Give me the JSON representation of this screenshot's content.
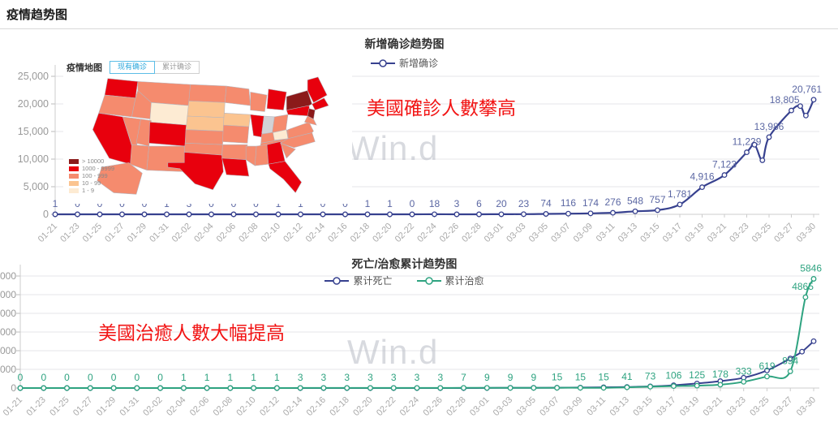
{
  "page": {
    "title": "疫情趋势图"
  },
  "watermark": "Win.d",
  "annotations": {
    "color": "#f21414",
    "chart1": "美國確診人數攀高",
    "chart2": "美國治癒人數大幅提高"
  },
  "map": {
    "title": "疫情地图",
    "tabs": [
      {
        "label": "现有确诊",
        "active": true
      },
      {
        "label": "累计确诊",
        "active": false
      }
    ],
    "legend": [
      {
        "label": "> 10000",
        "color": "#8b1a1a"
      },
      {
        "label": "1000 - 9999",
        "color": "#e8000d"
      },
      {
        "label": "100 - 999",
        "color": "#f58b6e"
      },
      {
        "label": "10 - 99",
        "color": "#fbc490"
      },
      {
        "label": "1 - 9",
        "color": "#fdebd3"
      }
    ],
    "no_data_color": "#d2d2d6",
    "states": [
      {
        "id": "WA",
        "level": 1
      },
      {
        "id": "OR",
        "level": 2
      },
      {
        "id": "CA",
        "level": 1
      },
      {
        "id": "NV",
        "level": 2
      },
      {
        "id": "ID",
        "level": 2
      },
      {
        "id": "MT",
        "level": 2
      },
      {
        "id": "WY",
        "level": 4
      },
      {
        "id": "UT",
        "level": 2
      },
      {
        "id": "CO",
        "level": 1
      },
      {
        "id": "AZ",
        "level": 2
      },
      {
        "id": "NM",
        "level": 2
      },
      {
        "id": "ND",
        "level": 2
      },
      {
        "id": "SD",
        "level": 3
      },
      {
        "id": "NE",
        "level": 3
      },
      {
        "id": "KS",
        "level": 2
      },
      {
        "id": "OK",
        "level": 2
      },
      {
        "id": "TX",
        "level": 1
      },
      {
        "id": "MN",
        "level": 2
      },
      {
        "id": "IA",
        "level": 3
      },
      {
        "id": "WI",
        "level": 2
      },
      {
        "id": "IL",
        "level": 1
      },
      {
        "id": "MI",
        "level": 1
      },
      {
        "id": "IN",
        "level": -1
      },
      {
        "id": "OH",
        "level": 2
      },
      {
        "id": "MO",
        "level": 2
      },
      {
        "id": "KY",
        "level": 2
      },
      {
        "id": "TN",
        "level": 2
      },
      {
        "id": "AR",
        "level": 2
      },
      {
        "id": "LA",
        "level": 1
      },
      {
        "id": "MS",
        "level": 2
      },
      {
        "id": "AL",
        "level": 2
      },
      {
        "id": "GA",
        "level": 1
      },
      {
        "id": "FL",
        "level": 1
      },
      {
        "id": "SC",
        "level": 2
      },
      {
        "id": "NC",
        "level": 2
      },
      {
        "id": "VA",
        "level": 2
      },
      {
        "id": "WV",
        "level": 4
      },
      {
        "id": "PA",
        "level": 1
      },
      {
        "id": "NY",
        "level": 0
      },
      {
        "id": "NE1",
        "level": 1
      },
      {
        "id": "MA",
        "level": 1
      },
      {
        "id": "NJ",
        "level": 0
      },
      {
        "id": "MD",
        "level": 2
      },
      {
        "id": "AK",
        "level": 2
      }
    ]
  },
  "chart_data": [
    {
      "type": "line",
      "title": "新增确诊趋势图",
      "legend_position": "top",
      "grid": true,
      "categories": [
        "01-21",
        "01-23",
        "01-25",
        "01-27",
        "01-29",
        "01-31",
        "02-02",
        "02-04",
        "02-06",
        "02-08",
        "02-10",
        "02-12",
        "02-14",
        "02-16",
        "02-18",
        "02-20",
        "02-22",
        "02-24",
        "02-26",
        "02-28",
        "03-01",
        "03-03",
        "03-05",
        "03-07",
        "03-09",
        "03-11",
        "03-13",
        "03-15",
        "03-17",
        "03-19",
        "03-21",
        "03-23",
        "03-25",
        "03-27",
        "03-30"
      ],
      "ylim": [
        0,
        25000
      ],
      "y_ticks": [
        {
          "v": 0,
          "label": "0"
        },
        {
          "v": 5000,
          "label": "5,000"
        },
        {
          "v": 10000,
          "label": "10,000"
        },
        {
          "v": 15000,
          "label": "15,000"
        },
        {
          "v": 20000,
          "label": "20,000"
        },
        {
          "v": 25000,
          "label": "25,000"
        }
      ],
      "series": [
        {
          "name": "新增确诊",
          "color": "#37418f",
          "label_color": "#5b67a3",
          "values": [
            1,
            0,
            0,
            0,
            0,
            1,
            3,
            0,
            0,
            0,
            1,
            1,
            0,
            0,
            1,
            1,
            0,
            18,
            3,
            6,
            20,
            23,
            74,
            116,
            174,
            276,
            548,
            757,
            1781,
            4916,
            7123,
            11229,
            13986,
            18805,
            20761
          ],
          "point_labels": [
            "1",
            "0",
            "0",
            "0",
            "0",
            "1",
            "3",
            "0",
            "0",
            "0",
            "1",
            "1",
            "0",
            "0",
            "1",
            "1",
            "0",
            "18",
            "3",
            "6",
            "20",
            "23",
            "74",
            "116",
            "174",
            "276",
            "548",
            "757",
            "1,781",
            "4,916",
            "7,123",
            "11,229",
            "13,986",
            "18,805",
            "20,761"
          ],
          "extra_curve_points": [
            {
              "i": 31.35,
              "v": 12600
            },
            {
              "i": 31.7,
              "v": 9800
            },
            {
              "i": 33.4,
              "v": 19600
            },
            {
              "i": 33.65,
              "v": 17900
            }
          ],
          "extra_points_estimated": true
        }
      ]
    },
    {
      "type": "line",
      "title": "死亡/治愈累计趋势图",
      "legend_position": "top",
      "grid": true,
      "categories": [
        "01-21",
        "01-23",
        "01-25",
        "01-27",
        "01-29",
        "01-31",
        "02-02",
        "02-04",
        "02-06",
        "02-08",
        "02-10",
        "02-12",
        "02-14",
        "02-16",
        "02-18",
        "02-20",
        "02-22",
        "02-24",
        "02-26",
        "02-28",
        "03-01",
        "03-03",
        "03-05",
        "03-07",
        "03-09",
        "03-11",
        "03-13",
        "03-15",
        "03-17",
        "03-19",
        "03-21",
        "03-23",
        "03-25",
        "03-27",
        "03-30"
      ],
      "ylim": [
        0,
        6000
      ],
      "y_ticks": [
        {
          "v": 0,
          "label": "0"
        },
        {
          "v": 1000,
          "label": "000"
        },
        {
          "v": 2000,
          "label": "000"
        },
        {
          "v": 3000,
          "label": "000"
        },
        {
          "v": 4000,
          "label": "000"
        },
        {
          "v": 5000,
          "label": "000"
        },
        {
          "v": 6000,
          "label": "000"
        }
      ],
      "y_tick_labels_clipped": true,
      "series": [
        {
          "name": "累计死亡",
          "color": "#37418f",
          "label_color": "#5b67a3",
          "values": [
            0,
            0,
            0,
            0,
            0,
            0,
            0,
            0,
            0,
            0,
            0,
            0,
            0,
            0,
            0,
            0,
            0,
            0,
            0,
            1,
            6,
            11,
            14,
            19,
            26,
            40,
            57,
            85,
            150,
            244,
            370,
            554,
            942,
            1581,
            2509
          ],
          "point_labels": null,
          "values_estimated_from_curve": true,
          "extra_curve_points": [
            {
              "i": 33.5,
              "v": 1950
            }
          ],
          "extra_points_estimated": true
        },
        {
          "name": "累计治愈",
          "color": "#2ea380",
          "label_color": "#2ea380",
          "values": [
            0,
            0,
            0,
            0,
            0,
            0,
            0,
            1,
            1,
            1,
            1,
            1,
            3,
            3,
            3,
            3,
            3,
            3,
            3,
            7,
            9,
            9,
            9,
            15,
            15,
            15,
            41,
            73,
            106,
            125,
            178,
            333,
            619,
            894,
            5846
          ],
          "point_labels": [
            "0",
            "0",
            "0",
            "0",
            "0",
            "0",
            "0",
            "1",
            "1",
            "1",
            "1",
            "1",
            "3",
            "3",
            "3",
            "3",
            "3",
            "3",
            "3",
            "7",
            "9",
            "9",
            "9",
            "15",
            "15",
            "15",
            "41",
            "73",
            "106",
            "125",
            "178",
            "333",
            "619",
            "894",
            "5846"
          ],
          "extra_curve_points": [
            {
              "i": 33.65,
              "v": 4865,
              "label": "4865"
            }
          ],
          "extra_points_estimated": true
        }
      ]
    }
  ]
}
